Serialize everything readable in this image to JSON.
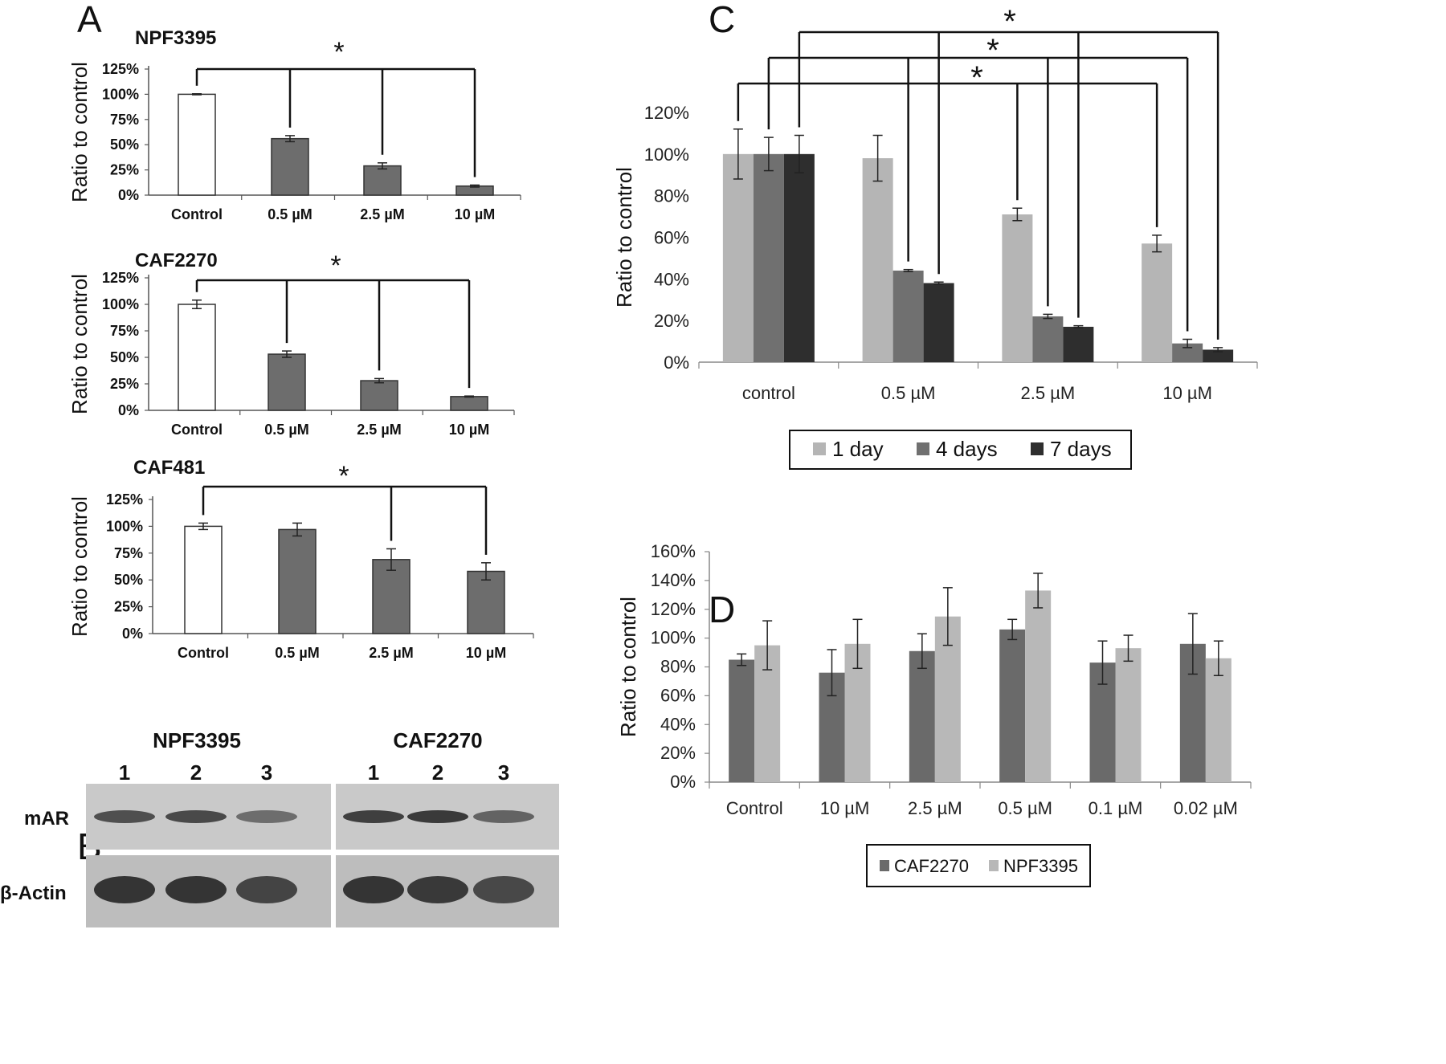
{
  "panel_labels": {
    "a": "A",
    "b": "B",
    "c": "C",
    "d": "D"
  },
  "significance_marker": "*",
  "colors": {
    "control_fill": "#ffffff",
    "treated_fill": "#6d6d6d",
    "day1": "#b5b5b5",
    "day4": "#707070",
    "day7": "#2e2e2e",
    "caf2270": "#6a6a6a",
    "npf3395": "#b8b8b8"
  },
  "chart_data": [
    {
      "id": "A1",
      "type": "bar",
      "title": "NPF3395",
      "ylabel": "Ratio to control",
      "yticks": [
        "0%",
        "25%",
        "50%",
        "75%",
        "100%",
        "125%"
      ],
      "ylim": [
        0,
        125
      ],
      "categories": [
        "Control",
        "0.5 µM",
        "2.5 µM",
        "10 µM"
      ],
      "values": [
        100,
        56,
        29,
        9
      ],
      "errors": [
        0.5,
        3,
        3,
        1
      ],
      "significance": "Control vs 0.5 µM, 2.5 µM, 10 µM"
    },
    {
      "id": "A2",
      "type": "bar",
      "title": "CAF2270",
      "ylabel": "Ratio to control",
      "yticks": [
        "0%",
        "25%",
        "50%",
        "75%",
        "100%",
        "125%"
      ],
      "ylim": [
        0,
        125
      ],
      "categories": [
        "Control",
        "0.5 µM",
        "2.5 µM",
        "10 µM"
      ],
      "values": [
        100,
        53,
        28,
        13
      ],
      "errors": [
        4,
        3,
        2,
        0.5
      ],
      "significance": "Control vs 0.5 µM, 2.5 µM, 10 µM"
    },
    {
      "id": "A3",
      "type": "bar",
      "title": "CAF481",
      "ylabel": "Ratio to control",
      "yticks": [
        "0%",
        "25%",
        "50%",
        "75%",
        "100%",
        "125%"
      ],
      "ylim": [
        0,
        125
      ],
      "categories": [
        "Control",
        "0.5 µM",
        "2.5 µM",
        "10 µM"
      ],
      "values": [
        100,
        97,
        69,
        58
      ],
      "errors": [
        3,
        6,
        10,
        8
      ],
      "significance": "Control vs 2.5 µM, 10 µM"
    },
    {
      "id": "C",
      "type": "bar",
      "ylabel": "Ratio to control",
      "yticks": [
        "0%",
        "20%",
        "40%",
        "60%",
        "80%",
        "100%",
        "120%"
      ],
      "ylim": [
        0,
        120
      ],
      "categories": [
        "control",
        "0.5 µM",
        "2.5 µM",
        "10 µM"
      ],
      "series": [
        {
          "name": "1 day",
          "values": [
            100,
            98,
            71,
            57
          ],
          "errors": [
            12,
            11,
            3,
            4
          ]
        },
        {
          "name": "4 days",
          "values": [
            100,
            44,
            22,
            9
          ],
          "errors": [
            8,
            0.5,
            1,
            2
          ]
        },
        {
          "name": "7 days",
          "values": [
            100,
            38,
            17,
            6
          ],
          "errors": [
            9,
            0.5,
            0.5,
            1
          ]
        }
      ],
      "legend": "bottom",
      "significance": "control vs 0.5 µM, 2.5 µM, 10 µM for each day"
    },
    {
      "id": "D",
      "type": "bar",
      "ylabel": "Ratio to control",
      "yticks": [
        "0%",
        "20%",
        "40%",
        "60%",
        "80%",
        "100%",
        "120%",
        "140%",
        "160%"
      ],
      "ylim": [
        0,
        160
      ],
      "categories": [
        "Control",
        "10 µM",
        "2.5 µM",
        "0.5 µM",
        "0.1 µM",
        "0.02 µM"
      ],
      "series": [
        {
          "name": "CAF2270",
          "values": [
            85,
            76,
            91,
            106,
            83,
            96
          ],
          "errors": [
            4,
            16,
            12,
            7,
            15,
            21
          ]
        },
        {
          "name": "NPF3395",
          "values": [
            95,
            96,
            115,
            133,
            93,
            86
          ],
          "errors": [
            17,
            17,
            20,
            12,
            9,
            12
          ]
        }
      ],
      "legend": "bottom"
    }
  ],
  "western_blot": {
    "groups": [
      "NPF3395",
      "CAF2270"
    ],
    "lanes": [
      "1",
      "2",
      "3"
    ],
    "rows": [
      "mAR",
      "β-Actin"
    ],
    "band_intensity": {
      "mAR": {
        "NPF3395": [
          0.75,
          0.8,
          0.45
        ],
        "CAF2270": [
          0.9,
          0.95,
          0.55
        ]
      },
      "β-Actin": {
        "NPF3395": [
          1.0,
          1.0,
          0.85
        ],
        "CAF2270": [
          1.0,
          0.95,
          0.8
        ]
      }
    }
  }
}
